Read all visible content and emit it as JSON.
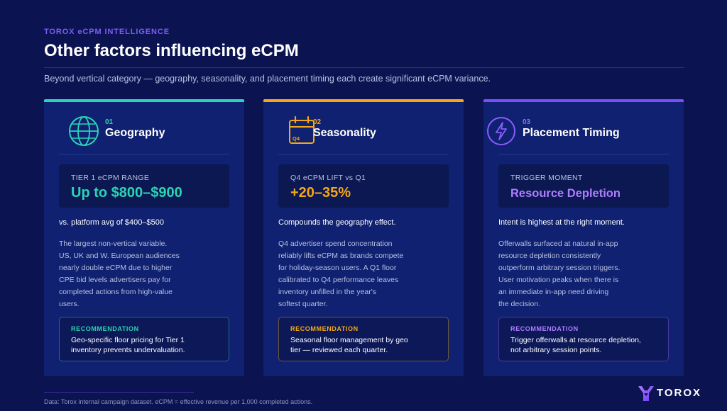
{
  "header": {
    "eyebrow": "TOROX eCPM INTELLIGENCE",
    "title": "Other factors influencing eCPM",
    "subtitle": "Beyond vertical category — geography, seasonality, and placement timing each create significant eCPM variance."
  },
  "colors": {
    "background": "#0b1451",
    "card": "#0f2170",
    "teal": "#2bd4b4",
    "amber": "#f5a814",
    "purple": "#7c4dff",
    "purple_text": "#b07cff"
  },
  "cards": [
    {
      "icon": "globe-icon",
      "number": "01",
      "title": "Geography",
      "stat_label": "TIER 1 eCPM RANGE",
      "stat_value": "Up to $800–$900",
      "lead": "vs. platform avg of $400–$500",
      "body": "The largest non-vertical variable.\nUS, UK and W. European audiences\nnearly double eCPM due to higher\nCPE bid levels advertisers pay for\ncompleted actions from high-value\nusers.",
      "rec_label": "RECOMMENDATION",
      "rec_text": "Geo-specific floor pricing for Tier 1\ninventory prevents undervaluation."
    },
    {
      "icon": "calendar-icon",
      "icon_text": "Q4",
      "number": "02",
      "title": "Seasonality",
      "stat_label": "Q4 eCPM LIFT vs Q1",
      "stat_value": "+20–35%",
      "lead": "Compounds the geography effect.",
      "body": "Q4 advertiser spend concentration\nreliably lifts eCPM as brands compete\nfor holiday-season users. A Q1 floor\ncalibrated to Q4 performance leaves\ninventory unfilled in the year's\nsoftest quarter.",
      "rec_label": "RECOMMENDATION",
      "rec_text": "Seasonal floor management by geo\ntier — reviewed each quarter."
    },
    {
      "icon": "lightning-bolt-icon",
      "number": "03",
      "title": "Placement Timing",
      "stat_label": "TRIGGER MOMENT",
      "stat_value": "Resource Depletion",
      "lead": "Intent is highest at the right moment.",
      "body": "Offerwalls surfaced at natural in-app\nresource depletion consistently\noutperform arbitrary session triggers.\nUser motivation peaks when there is\nan immediate in-app need driving\nthe decision.",
      "rec_label": "RECOMMENDATION",
      "rec_text": "Trigger offerwalls at resource depletion,\nnot arbitrary session points."
    }
  ],
  "footer": {
    "footnote": "Data: Torox internal campaign dataset. eCPM = effective revenue per 1,000 completed actions.",
    "logo_text": "TOROX"
  }
}
